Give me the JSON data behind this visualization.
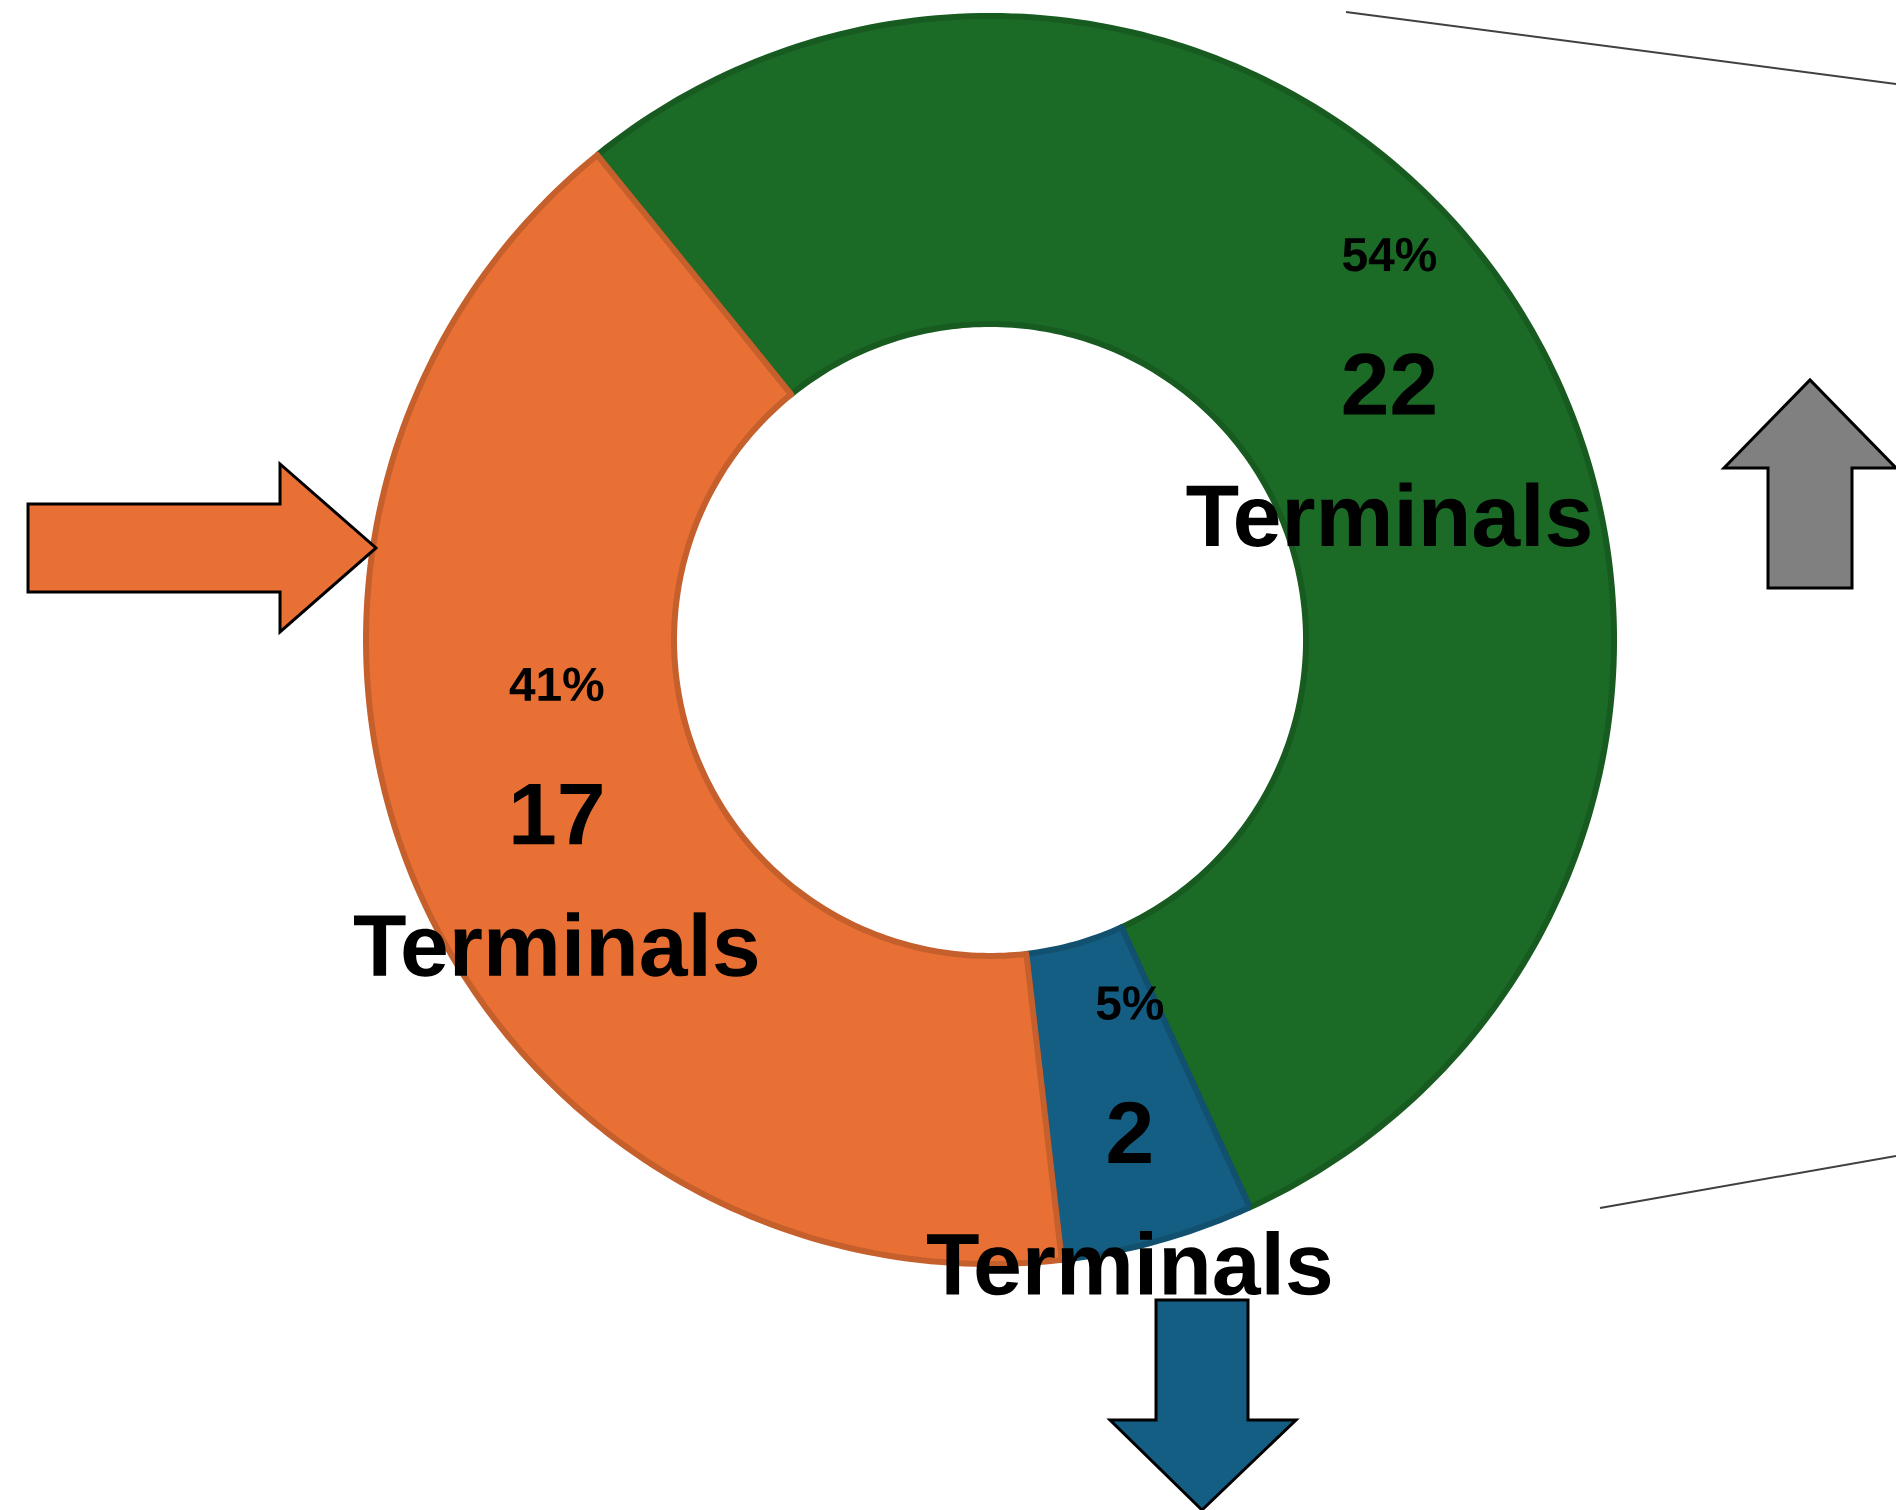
{
  "chart_data": {
    "type": "donut",
    "categories": [
      "22 Terminals",
      "2 Terminals",
      "17 Terminals"
    ],
    "values": [
      54,
      5,
      41
    ],
    "colors": [
      "#1b6b27",
      "#155e83",
      "#e87034"
    ],
    "value_labels": [
      "54%",
      "5%",
      "41%"
    ]
  }
}
